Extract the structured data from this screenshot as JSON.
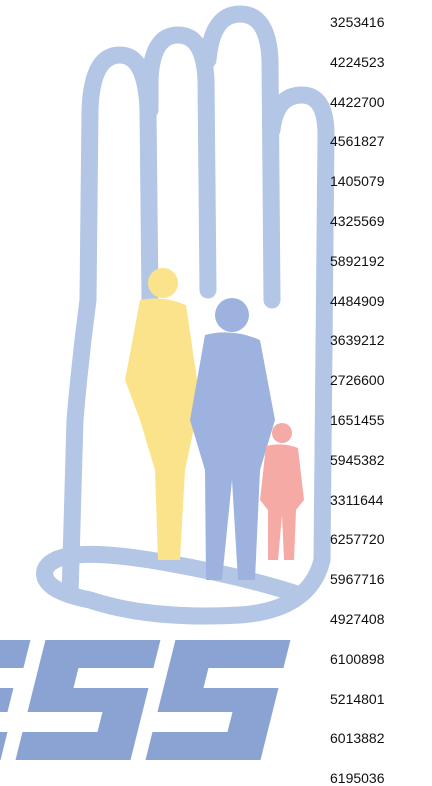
{
  "rows": [
    "3253416",
    "4224523",
    "4422700",
    "4561827",
    "1405079",
    "4325569",
    "5892192",
    "4484909",
    "3639212",
    "2726600",
    "1651455",
    "5945382",
    "3311644",
    "6257720",
    "5967716",
    "4927408",
    "6100898",
    "5214801",
    "6013882",
    "6195036"
  ]
}
